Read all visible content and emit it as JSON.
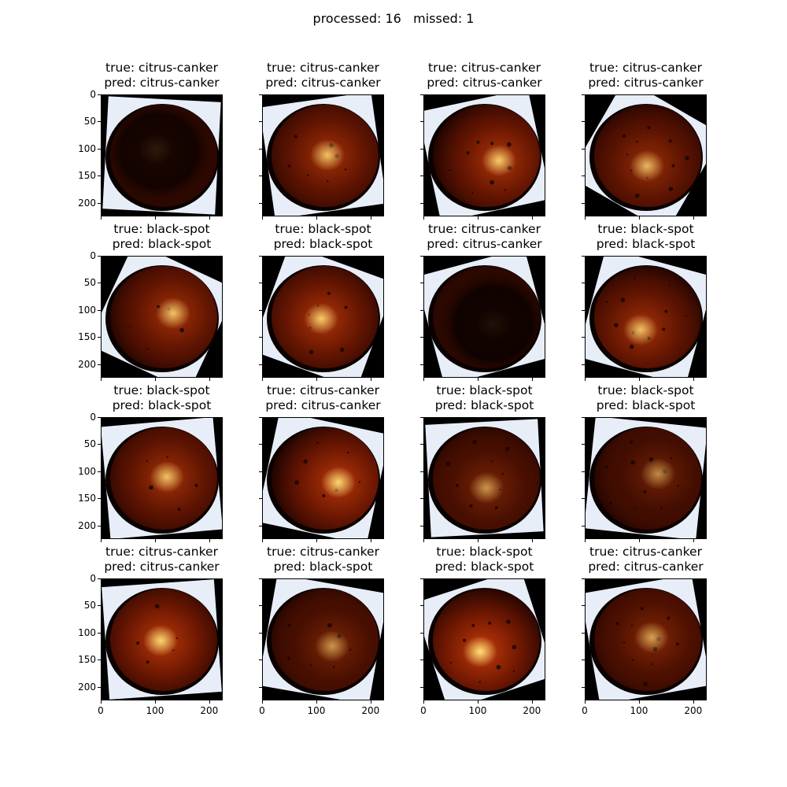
{
  "figure": {
    "suptitle": "processed: 16   missed: 1",
    "y_ticks": [
      "0",
      "50",
      "100",
      "150",
      "200"
    ],
    "x_ticks": [
      "0",
      "100",
      "200"
    ]
  },
  "colors": {
    "background_corner": "#000000",
    "backdrop": "#e8eef8",
    "fruit_dark": "#180200",
    "fruit_orange": "#d6400a",
    "highlight": "#ffe27a"
  },
  "panels": [
    {
      "title_true": "true: citrus-canker",
      "title_pred": "pred: citrus-canker",
      "brightness": 0.08,
      "rotation": 3
    },
    {
      "title_true": "true: citrus-canker",
      "title_pred": "pred: citrus-canker",
      "brightness": 0.75,
      "rotation": -8
    },
    {
      "title_true": "true: citrus-canker",
      "title_pred": "pred: citrus-canker",
      "brightness": 0.8,
      "rotation": -12
    },
    {
      "title_true": "true: citrus-canker",
      "title_pred": "pred: citrus-canker",
      "brightness": 0.7,
      "rotation": 30
    },
    {
      "title_true": "true: black-spot",
      "title_pred": "pred: black-spot",
      "brightness": 0.75,
      "rotation": 25
    },
    {
      "title_true": "true: black-spot",
      "title_pred": "pred: black-spot",
      "brightness": 0.8,
      "rotation": 20
    },
    {
      "title_true": "true: citrus-canker",
      "title_pred": "pred: citrus-canker",
      "brightness": 0.05,
      "rotation": -15
    },
    {
      "title_true": "true: black-spot",
      "title_pred": "pred: black-spot",
      "brightness": 0.75,
      "rotation": 15
    },
    {
      "title_true": "true: black-spot",
      "title_pred": "pred: black-spot",
      "brightness": 0.75,
      "rotation": -5
    },
    {
      "title_true": "true: citrus-canker",
      "title_pred": "pred: citrus-canker",
      "brightness": 0.85,
      "rotation": 12
    },
    {
      "title_true": "true: black-spot",
      "title_pred": "pred: black-spot",
      "brightness": 0.55,
      "rotation": -3
    },
    {
      "title_true": "true: black-spot",
      "title_pred": "pred: black-spot",
      "brightness": 0.5,
      "rotation": 6
    },
    {
      "title_true": "true: citrus-canker",
      "title_pred": "pred: citrus-canker",
      "brightness": 0.85,
      "rotation": -4
    },
    {
      "title_true": "true: citrus-canker",
      "title_pred": "pred: black-spot",
      "brightness": 0.55,
      "rotation": 10
    },
    {
      "title_true": "true: black-spot",
      "title_pred": "pred: black-spot",
      "brightness": 0.9,
      "rotation": -18
    },
    {
      "title_true": "true: citrus-canker",
      "title_pred": "pred: citrus-canker",
      "brightness": 0.6,
      "rotation": -10
    }
  ]
}
